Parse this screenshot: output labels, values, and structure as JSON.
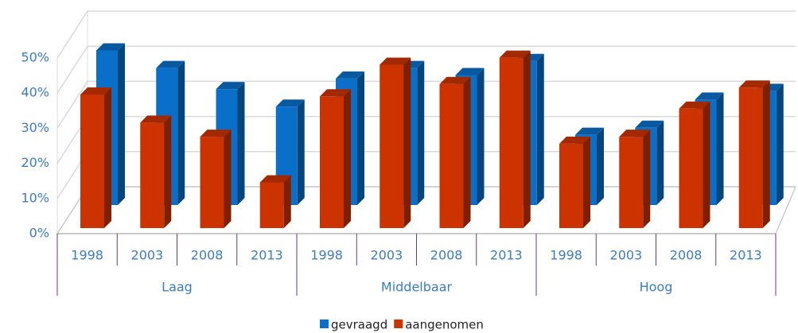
{
  "chart_data": {
    "type": "bar3d",
    "groups": [
      "Laag",
      "Middelbaar",
      "Hoog"
    ],
    "categories": [
      "1998",
      "2003",
      "2008",
      "2013",
      "1998",
      "2003",
      "2008",
      "2013",
      "1998",
      "2003",
      "2008",
      "2013"
    ],
    "series": [
      {
        "name": "gevraagd",
        "color": "#0a6fc8",
        "values": [
          44,
          39,
          33,
          28,
          36,
          39,
          37,
          41,
          20,
          22,
          30,
          32.5
        ]
      },
      {
        "name": "aangenomen",
        "color": "#cc3300",
        "values": [
          38,
          30,
          26,
          13,
          37.5,
          46.5,
          41,
          48.5,
          24,
          26,
          34,
          40
        ]
      }
    ],
    "ylim": [
      0,
      50
    ],
    "yticks": [
      {
        "value": 0,
        "label": "0%"
      },
      {
        "value": 10,
        "label": "10%"
      },
      {
        "value": 20,
        "label": "20%"
      },
      {
        "value": 30,
        "label": "30%"
      },
      {
        "value": 40,
        "label": "40%"
      },
      {
        "value": 50,
        "label": "50%"
      }
    ],
    "grid": true
  }
}
